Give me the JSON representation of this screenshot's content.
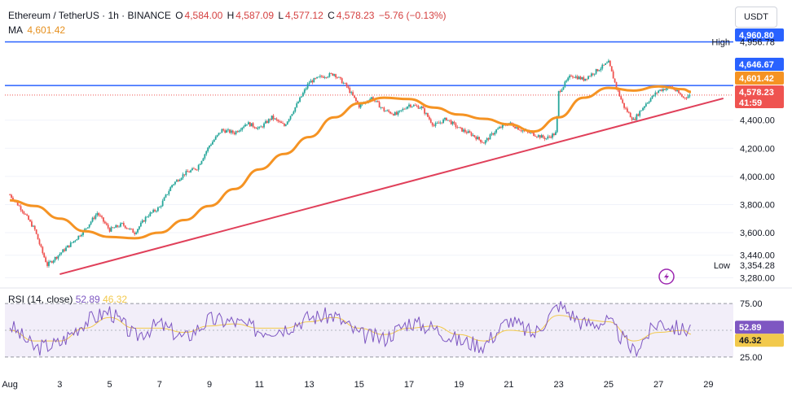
{
  "header": {
    "symbol": "Ethereum / TetherUS · 1h · BINANCE",
    "o_label": "O",
    "o_val": "4,584.00",
    "h_label": "H",
    "h_val": "4,587.09",
    "l_label": "L",
    "l_val": "4,577.12",
    "c_label": "C",
    "c_val": "4,578.23",
    "change": "−5.76 (−0.13%)",
    "ma_label": "MA",
    "ma_val": "4,601.42"
  },
  "currency": "USDT",
  "colors": {
    "up": "#26a69a",
    "down": "#ef5350",
    "ma": "#f59323",
    "trend": "#e0405a",
    "hline": "#2962ff",
    "rsi": "#7e57c2",
    "rsi_ma": "#f2c94c",
    "rsi_band": "#ede7f6"
  },
  "price_axis": {
    "ticks": [
      "4,400.00",
      "4,200.00",
      "4,000.00",
      "3,800.00",
      "3,600.00",
      "3,440.00",
      "3,280.00"
    ],
    "tags": {
      "top": "4,960.80",
      "high_label": "High",
      "high_val": "4,956.78",
      "level": "4,646.67",
      "ma": "4,601.42",
      "last": "4,578.23",
      "countdown": "41:59",
      "low_label": "Low",
      "low_val": "3,354.28"
    }
  },
  "rsi": {
    "label": "RSI (14, close)",
    "value": "52.89",
    "ma_value": "46.32",
    "ticks": [
      "75.00",
      "25.00"
    ],
    "tags": {
      "value": "52.89",
      "ma_value": "46.32"
    }
  },
  "x_axis": {
    "labels": [
      "Aug",
      "3",
      "5",
      "7",
      "9",
      "11",
      "13",
      "15",
      "17",
      "19",
      "21",
      "23",
      "25",
      "27",
      "29"
    ]
  },
  "chart_data": {
    "type": "line",
    "title": "Ethereum / TetherUS · 1h · BINANCE",
    "x_unit": "August date",
    "y_unit": "USDT",
    "close_series": {
      "name": "Close",
      "x": [
        1.0,
        1.5,
        2.0,
        2.3,
        2.5,
        3.0,
        3.5,
        4.0,
        4.5,
        5.0,
        5.5,
        6.0,
        6.5,
        7.0,
        7.5,
        8.0,
        8.5,
        9.0,
        9.5,
        10.0,
        10.5,
        11.0,
        11.5,
        12.0,
        12.5,
        13.0,
        13.5,
        14.0,
        14.5,
        15.0,
        15.5,
        16.0,
        16.5,
        17.0,
        17.5,
        18.0,
        18.5,
        19.0,
        19.5,
        20.0,
        20.5,
        21.0,
        21.5,
        22.0,
        22.5,
        22.9,
        23.0,
        23.5,
        24.0,
        24.5,
        25.0,
        25.3,
        25.6,
        26.0,
        26.5,
        27.0,
        27.5,
        28.0,
        28.3
      ],
      "y": [
        3870,
        3760,
        3620,
        3460,
        3370,
        3450,
        3530,
        3620,
        3740,
        3620,
        3660,
        3600,
        3720,
        3780,
        3940,
        4020,
        4060,
        4220,
        4330,
        4310,
        4380,
        4340,
        4420,
        4360,
        4510,
        4670,
        4710,
        4730,
        4640,
        4500,
        4560,
        4470,
        4440,
        4510,
        4490,
        4360,
        4410,
        4340,
        4300,
        4240,
        4330,
        4380,
        4330,
        4300,
        4270,
        4310,
        4600,
        4720,
        4690,
        4750,
        4810,
        4640,
        4500,
        4400,
        4520,
        4610,
        4640,
        4560,
        4578
      ]
    },
    "ma_series": {
      "name": "MA",
      "x": [
        1,
        2,
        3,
        4,
        5,
        6,
        7,
        8,
        9,
        10,
        11,
        12,
        13,
        14,
        15,
        16,
        17,
        18,
        19,
        20,
        21,
        22,
        23,
        24,
        25,
        26,
        27,
        28,
        28.3
      ],
      "y": [
        3830,
        3790,
        3700,
        3610,
        3570,
        3560,
        3600,
        3690,
        3790,
        3910,
        4050,
        4160,
        4280,
        4420,
        4520,
        4560,
        4550,
        4490,
        4440,
        4410,
        4370,
        4320,
        4420,
        4560,
        4630,
        4610,
        4640,
        4620,
        4601
      ]
    },
    "trendline": {
      "x": [
        3.0,
        29.6
      ],
      "y": [
        3305,
        4555
      ]
    },
    "resistance_level": 4646.67,
    "ylim": [
      3230,
      5000
    ],
    "xlim": [
      0.8,
      30.0
    ],
    "rsi": {
      "x": [
        1,
        2,
        3,
        4,
        5,
        6,
        7,
        8,
        9,
        10,
        11,
        12,
        13,
        14,
        15,
        16,
        17,
        18,
        19,
        20,
        21,
        22,
        23,
        24,
        25,
        26,
        27,
        28,
        28.3
      ],
      "rsi_values": [
        55,
        33,
        38,
        58,
        68,
        44,
        56,
        42,
        60,
        58,
        50,
        52,
        62,
        64,
        46,
        42,
        58,
        52,
        40,
        36,
        60,
        46,
        74,
        56,
        58,
        30,
        58,
        50,
        52.89
      ],
      "ma_values": [
        50,
        40,
        40,
        52,
        62,
        52,
        52,
        48,
        54,
        56,
        52,
        52,
        58,
        62,
        52,
        46,
        52,
        54,
        46,
        40,
        50,
        48,
        64,
        60,
        58,
        40,
        48,
        50,
        46.32
      ],
      "upper": 75,
      "lower": 25,
      "mid": 50,
      "ylim": [
        15,
        85
      ]
    }
  }
}
